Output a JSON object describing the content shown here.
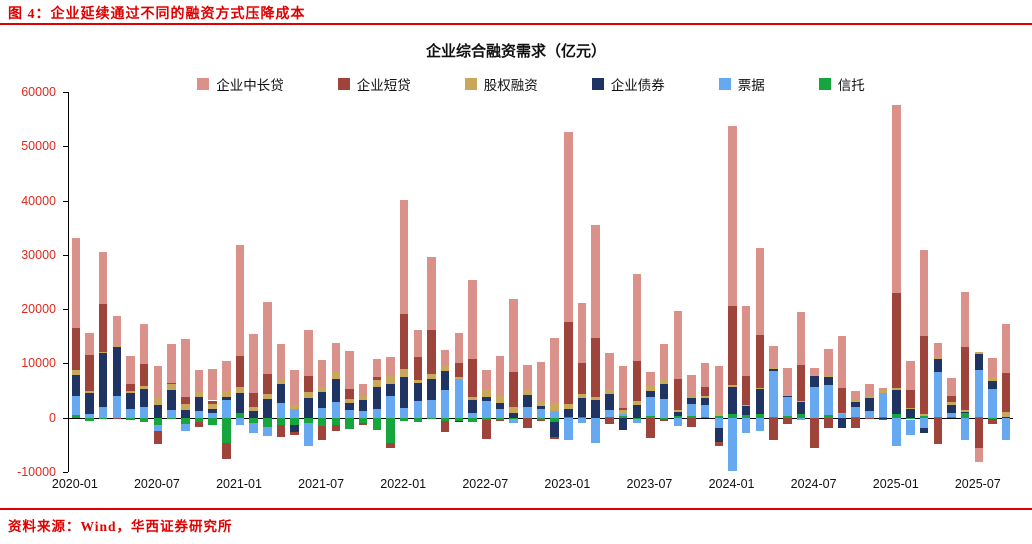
{
  "header": {
    "title": "图 4：企业延续通过不同的融资方式压降成本"
  },
  "footer": {
    "source": "资料来源：Wind，华西证券研究所"
  },
  "colors": {
    "title_red": "#e00000",
    "y_axis_label_red": "#e0281e",
    "axis_line": "#000000"
  },
  "chart_data": {
    "type": "bar",
    "stacked": true,
    "title": "企业综合融资需求（亿元）",
    "xlabel": "",
    "ylabel": "",
    "ylim": [
      -10000,
      60000
    ],
    "yticks": [
      60000,
      50000,
      40000,
      30000,
      20000,
      10000,
      0,
      -10000
    ],
    "grid": false,
    "legend_position": "top",
    "x_ticks": [
      "2020-01",
      "2020-07",
      "2021-01",
      "2021-07",
      "2022-01",
      "2022-07",
      "2023-01",
      "2023-07",
      "2024-01",
      "2024-07",
      "2025-01",
      "2025-07"
    ],
    "categories": [
      "2020-01",
      "2020-02",
      "2020-03",
      "2020-04",
      "2020-05",
      "2020-06",
      "2020-07",
      "2020-08",
      "2020-09",
      "2020-10",
      "2020-11",
      "2020-12",
      "2021-01",
      "2021-02",
      "2021-03",
      "2021-04",
      "2021-05",
      "2021-06",
      "2021-07",
      "2021-08",
      "2021-09",
      "2021-10",
      "2021-11",
      "2021-12",
      "2022-01",
      "2022-02",
      "2022-03",
      "2022-04",
      "2022-05",
      "2022-06",
      "2022-07",
      "2022-08",
      "2022-09",
      "2022-10",
      "2022-11",
      "2022-12",
      "2023-01",
      "2023-02",
      "2023-03",
      "2023-04",
      "2023-05",
      "2023-06",
      "2023-07",
      "2023-08",
      "2023-09",
      "2023-10",
      "2023-11",
      "2023-12",
      "2024-01",
      "2024-02",
      "2024-03",
      "2024-04",
      "2024-05",
      "2024-06",
      "2024-07",
      "2024-08",
      "2024-09",
      "2024-10",
      "2024-11",
      "2024-12",
      "2025-01",
      "2025-02",
      "2025-03",
      "2025-04",
      "2025-05",
      "2025-06",
      "2025-07",
      "2025-08",
      "2025-09"
    ],
    "stack_order_bottom_to_top": [
      "信托",
      "票据",
      "企业债券",
      "股权融资",
      "企业短贷",
      "企业中长贷"
    ],
    "series": [
      {
        "name": "企业中长贷",
        "color": "#d9918a",
        "values": [
          16600,
          4157,
          9643,
          5547,
          5305,
          7348,
          5968,
          7252,
          10680,
          4113,
          5887,
          5500,
          20400,
          11000,
          13300,
          6605,
          6528,
          8367,
          4937,
          5215,
          6948,
          2190,
          3417,
          3393,
          21000,
          5052,
          13448,
          2652,
          5551,
          14497,
          3459,
          7353,
          13488,
          4623,
          7367,
          12110,
          35000,
          11100,
          20700,
          6669,
          7698,
          15933,
          2712,
          6444,
          12544,
          3828,
          4460,
          8612,
          33100,
          12900,
          16000,
          4100,
          5000,
          9700,
          1300,
          4900,
          9600,
          1700,
          2100,
          400,
          34600,
          5400,
          15800,
          2500,
          3300,
          10100,
          -2600,
          3500,
          9100
        ]
      },
      {
        "name": "企业短贷",
        "color": "#9e443b",
        "values": [
          7699,
          6549,
          8752,
          -62,
          1211,
          4051,
          -2421,
          47,
          1274,
          -837,
          734,
          -3097,
          5755,
          2497,
          3748,
          -2147,
          -644,
          3091,
          -2577,
          -1149,
          1826,
          -288,
          410,
          -1054,
          10100,
          4111,
          8089,
          -1948,
          2642,
          6906,
          -3546,
          -121,
          6567,
          -1843,
          -241,
          -416,
          15100,
          5785,
          10815,
          -1099,
          350,
          7449,
          -3785,
          -401,
          5686,
          -1770,
          1705,
          -635,
          14600,
          5300,
          9800,
          -4100,
          -1200,
          6700,
          -5500,
          -1900,
          4600,
          -1900,
          -100,
          -200,
          17400,
          3300,
          14400,
          -4800,
          1100,
          11600,
          -5500,
          -1000,
          7100
        ]
      },
      {
        "name": "股权融资",
        "color": "#c9a85c",
        "values": [
          977,
          449,
          198,
          315,
          354,
          528,
          1215,
          1282,
          1140,
          927,
          771,
          1125,
          991,
          693,
          783,
          814,
          717,
          957,
          938,
          1478,
          772,
          846,
          1294,
          1510,
          1439,
          585,
          958,
          1166,
          292,
          588,
          1437,
          1251,
          1021,
          788,
          788,
          1485,
          964,
          571,
          614,
          993,
          753,
          700,
          786,
          1036,
          327,
          321,
          359,
          508,
          422,
          114,
          227,
          186,
          111,
          154,
          231,
          133,
          128,
          283,
          406,
          453,
          475,
          136,
          413,
          392,
          530,
          429,
          528,
          800,
          1000
        ]
      },
      {
        "name": "企业债券",
        "color": "#1f3462",
        "values": [
          3865,
          3860,
          9953,
          9015,
          2971,
          3311,
          2383,
          3633,
          1422,
          2522,
          862,
          442,
          3751,
          1306,
          3535,
          3509,
          -1336,
          3702,
          2998,
          4341,
          1400,
          2030,
          4104,
          2167,
          5799,
          3377,
          3894,
          3479,
          -108,
          2495,
          734,
          1148,
          876,
          2325,
          596,
          -2709,
          1486,
          3644,
          3288,
          2881,
          -2175,
          2360,
          1179,
          2698,
          663,
          1144,
          1330,
          -2625,
          4835,
          1642,
          4608,
          493,
          313,
          2128,
          2028,
          1703,
          -1911,
          1015,
          2428,
          -153,
          4454,
          1702,
          -905,
          2340,
          1496,
          185,
          2791,
          1343,
          105
        ]
      },
      {
        "name": "票据",
        "color": "#66a9f0",
        "values": [
          3596,
          634,
          2010,
          3910,
          1586,
          2036,
          -1021,
          1441,
          -1276,
          1226,
          804,
          3341,
          -1405,
          -1855,
          -1525,
          2711,
          1538,
          -4087,
          1771,
          2813,
          1353,
          1160,
          1605,
          4087,
          1788,
          3052,
          3187,
          5148,
          7129,
          796,
          3136,
          1591,
          -827,
          1905,
          1549,
          1146,
          -4127,
          -989,
          -4687,
          1280,
          420,
          -821,
          3597,
          3472,
          -1500,
          2176,
          2092,
          -1869,
          -9733,
          -2767,
          -2500,
          8381,
          3572,
          -393,
          5586,
          5451,
          686,
          1694,
          1223,
          4500,
          -5149,
          -2885,
          -1986,
          8341,
          746,
          -4109,
          8711,
          5343,
          -4026
        ]
      },
      {
        "name": "信托",
        "color": "#17a53e",
        "values": [
          432,
          -540,
          -22,
          23,
          -337,
          -852,
          -1367,
          -316,
          -1159,
          -875,
          -1387,
          -4601,
          842,
          -936,
          -1791,
          -1328,
          -1295,
          -1047,
          -1571,
          -1362,
          -2129,
          -1061,
          -2190,
          -4580,
          -680,
          -751,
          -259,
          -615,
          -619,
          -828,
          -398,
          -472,
          -192,
          -61,
          -365,
          -764,
          62,
          66,
          -45,
          119,
          303,
          -153,
          230,
          -221,
          402,
          393,
          197,
          348,
          732,
          571,
          680,
          142,
          224,
          748,
          -26,
          484,
          6,
          217,
          -105,
          92,
          623,
          -330,
          238,
          116,
          173,
          816,
          152,
          -207,
          14
        ]
      }
    ]
  }
}
